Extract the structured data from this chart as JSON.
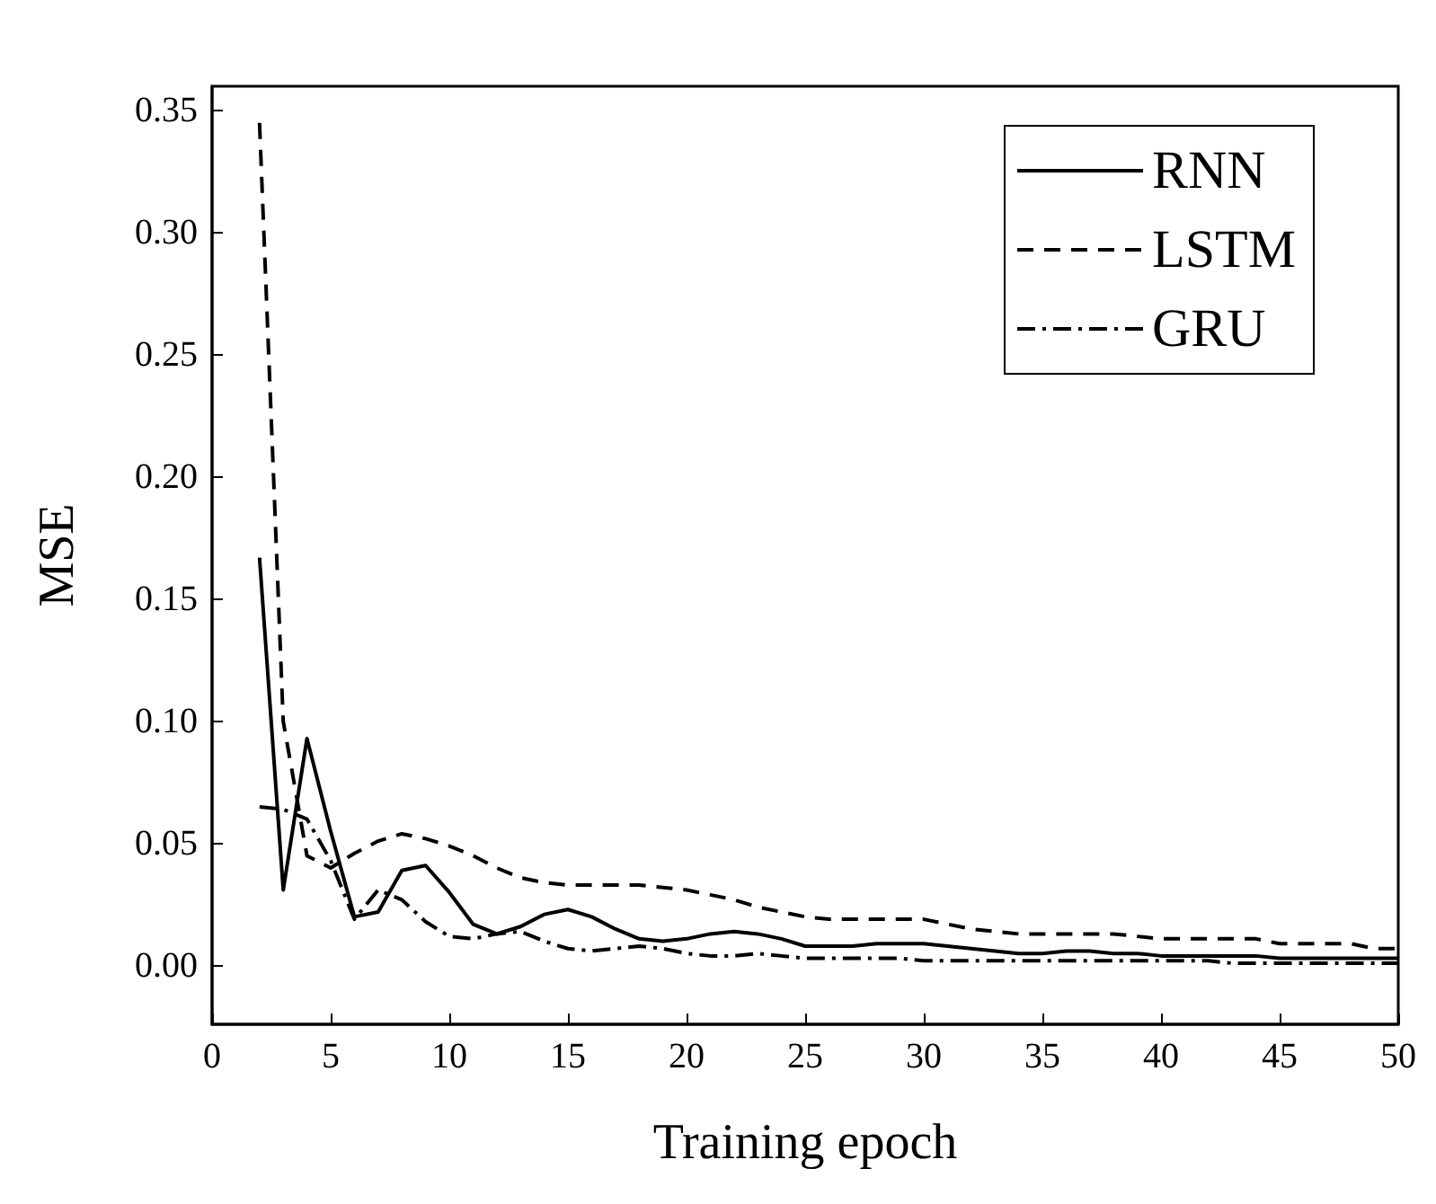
{
  "chart_data": {
    "type": "line",
    "xlabel": "Training epoch",
    "ylabel": "MSE",
    "legend": "top right",
    "grid": false,
    "marker": "none",
    "x": [
      2,
      3,
      4,
      5,
      6,
      7,
      8,
      9,
      10,
      11,
      12,
      13,
      14,
      15,
      16,
      17,
      18,
      19,
      20,
      21,
      22,
      23,
      24,
      25,
      26,
      27,
      28,
      29,
      30,
      31,
      32,
      33,
      34,
      35,
      36,
      37,
      38,
      39,
      40,
      41,
      42,
      43,
      44,
      45,
      46,
      47,
      48,
      49,
      50
    ],
    "xlim": [
      0,
      50
    ],
    "xticks": [
      0,
      5,
      10,
      15,
      20,
      25,
      30,
      35,
      40,
      45,
      50
    ],
    "ylim": [
      -0.024,
      0.36
    ],
    "yticks": [
      {
        "value": 0,
        "label": "0.00"
      },
      {
        "value": 0.05,
        "label": "0.05"
      },
      {
        "value": 0.1,
        "label": "0.10"
      },
      {
        "value": 0.15,
        "label": "0.15"
      },
      {
        "value": 0.2,
        "label": "0.20"
      },
      {
        "value": 0.25,
        "label": "0.25"
      },
      {
        "value": 0.3,
        "label": "0.30"
      },
      {
        "value": 0.35,
        "label": "0.35"
      }
    ],
    "series": [
      {
        "name": "RNN",
        "color": "#000000",
        "line_style": "solid",
        "values": [
          0.167,
          0.031,
          0.093,
          0.055,
          0.02,
          0.022,
          0.039,
          0.041,
          0.03,
          0.017,
          0.013,
          0.016,
          0.021,
          0.023,
          0.02,
          0.015,
          0.011,
          0.01,
          0.011,
          0.013,
          0.014,
          0.013,
          0.011,
          0.008,
          0.008,
          0.008,
          0.009,
          0.009,
          0.009,
          0.008,
          0.007,
          0.006,
          0.005,
          0.005,
          0.006,
          0.006,
          0.005,
          0.005,
          0.004,
          0.004,
          0.004,
          0.004,
          0.004,
          0.003,
          0.003,
          0.003,
          0.003,
          0.003,
          0.003
        ]
      },
      {
        "name": "LSTM",
        "color": "#000000",
        "line_style": "dashed",
        "values": [
          0.345,
          0.1,
          0.045,
          0.04,
          0.046,
          0.051,
          0.054,
          0.052,
          0.049,
          0.045,
          0.04,
          0.036,
          0.034,
          0.033,
          0.033,
          0.033,
          0.033,
          0.032,
          0.031,
          0.029,
          0.027,
          0.024,
          0.022,
          0.02,
          0.019,
          0.019,
          0.019,
          0.019,
          0.019,
          0.017,
          0.015,
          0.014,
          0.013,
          0.013,
          0.013,
          0.013,
          0.013,
          0.012,
          0.011,
          0.011,
          0.011,
          0.011,
          0.011,
          0.009,
          0.009,
          0.009,
          0.009,
          0.007,
          0.007
        ]
      },
      {
        "name": "GRU",
        "color": "#000000",
        "line_style": "dashdot",
        "values": [
          0.065,
          0.064,
          0.06,
          0.043,
          0.019,
          0.031,
          0.027,
          0.018,
          0.012,
          0.011,
          0.013,
          0.014,
          0.01,
          0.007,
          0.006,
          0.007,
          0.008,
          0.007,
          0.005,
          0.004,
          0.004,
          0.005,
          0.004,
          0.003,
          0.003,
          0.003,
          0.003,
          0.003,
          0.002,
          0.002,
          0.002,
          0.002,
          0.002,
          0.002,
          0.002,
          0.002,
          0.002,
          0.002,
          0.002,
          0.002,
          0.002,
          0.001,
          0.001,
          0.001,
          0.001,
          0.001,
          0.001,
          0.001,
          0.001
        ]
      }
    ]
  }
}
